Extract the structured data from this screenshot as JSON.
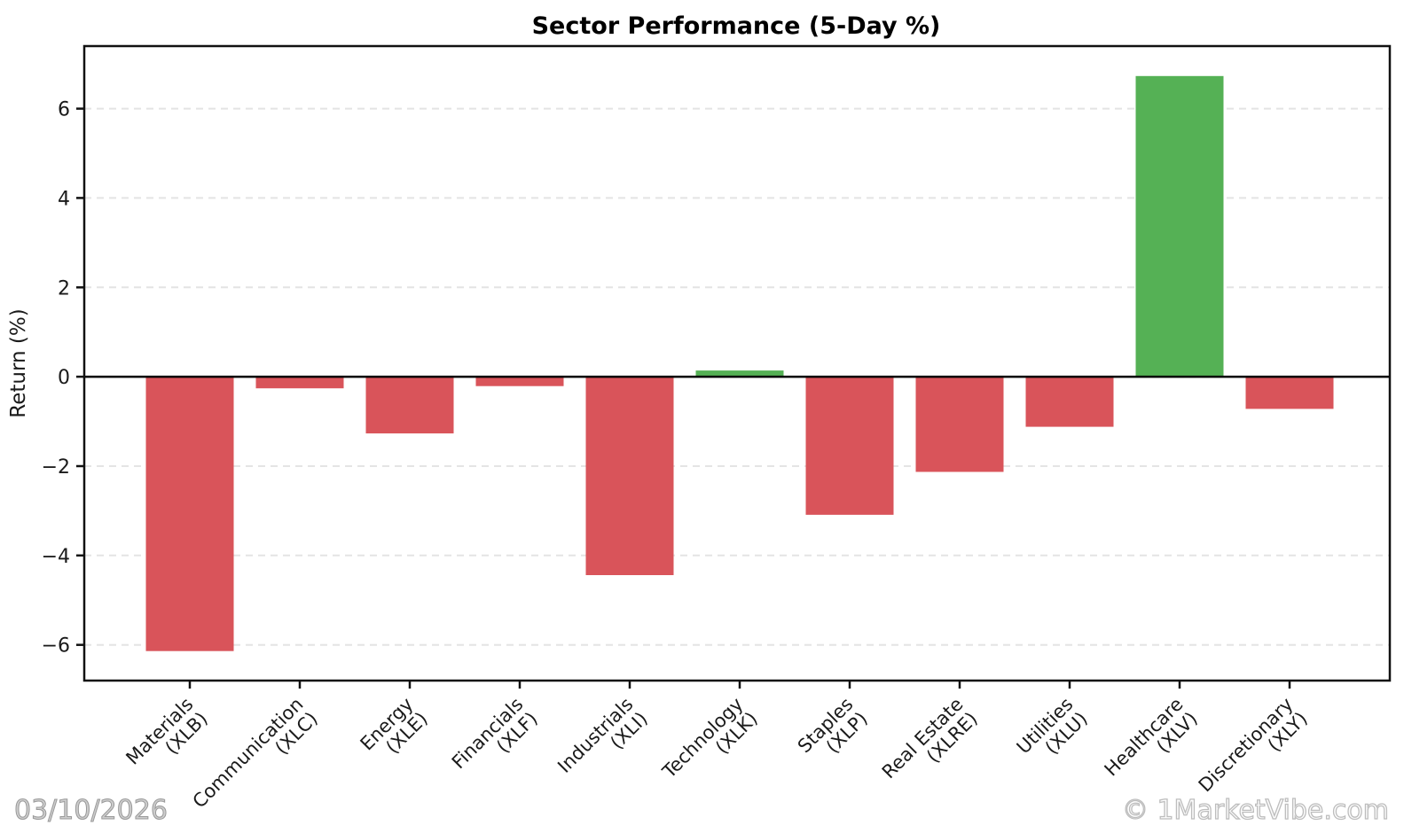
{
  "page": {
    "title": "Sector Performance (5-Day %)"
  },
  "footer": {
    "date": "03/10/2026",
    "credit": "© 1MarketVibe.com"
  },
  "chart_data": {
    "type": "bar",
    "title": "Sector Performance (5-Day %)",
    "xlabel": "",
    "ylabel": "Return (%)",
    "categories": [
      "Materials",
      "Communication",
      "Energy",
      "Financials",
      "Industrials",
      "Technology",
      "Staples",
      "Real Estate",
      "Utilities",
      "Healthcare",
      "Discretionary"
    ],
    "tickers": [
      "XLB",
      "XLC",
      "XLE",
      "XLF",
      "XLI",
      "XLK",
      "XLP",
      "XLRE",
      "XLU",
      "XLV",
      "XLY"
    ],
    "values": [
      -6.14,
      -0.26,
      -1.27,
      -0.21,
      -4.44,
      0.14,
      -3.09,
      -2.13,
      -1.12,
      6.73,
      -0.72
    ],
    "yticks": [
      -6,
      -4,
      -2,
      0,
      2,
      4,
      6
    ],
    "ylim": [
      -6.8,
      7.4
    ],
    "grid": {
      "horizontal": true,
      "style": "dashed",
      "color": "#e4e4e4"
    },
    "zero_line": true,
    "legend": "none",
    "colors": {
      "positive": "#55b155",
      "negative": "#d9545a",
      "spine": "#111111",
      "zero_line": "#000000"
    }
  }
}
